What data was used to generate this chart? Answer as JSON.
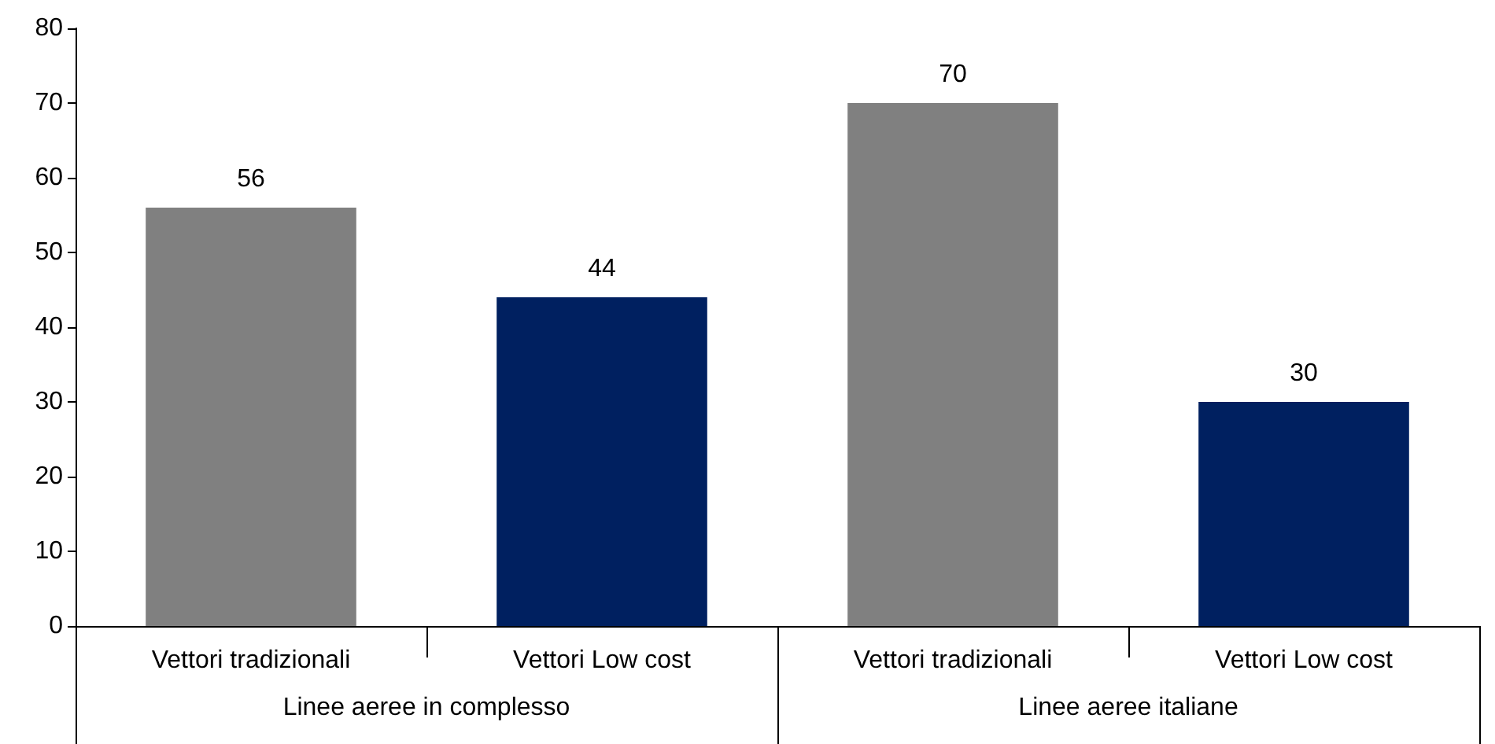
{
  "chart_data": {
    "type": "bar",
    "categories": [
      "Vettori tradizionali",
      "Vettori Low cost",
      "Vettori tradizionali",
      "Vettori Low cost"
    ],
    "values": [
      56,
      44,
      70,
      30
    ],
    "colors": [
      "#808080",
      "#002060",
      "#808080",
      "#002060"
    ],
    "data_labels": true,
    "ylim": [
      0,
      80
    ],
    "yticks": [
      0,
      10,
      20,
      30,
      40,
      50,
      60,
      70,
      80
    ],
    "annotations": [
      "Linee aeree in complesso",
      "Linee aeree italiane"
    ]
  }
}
